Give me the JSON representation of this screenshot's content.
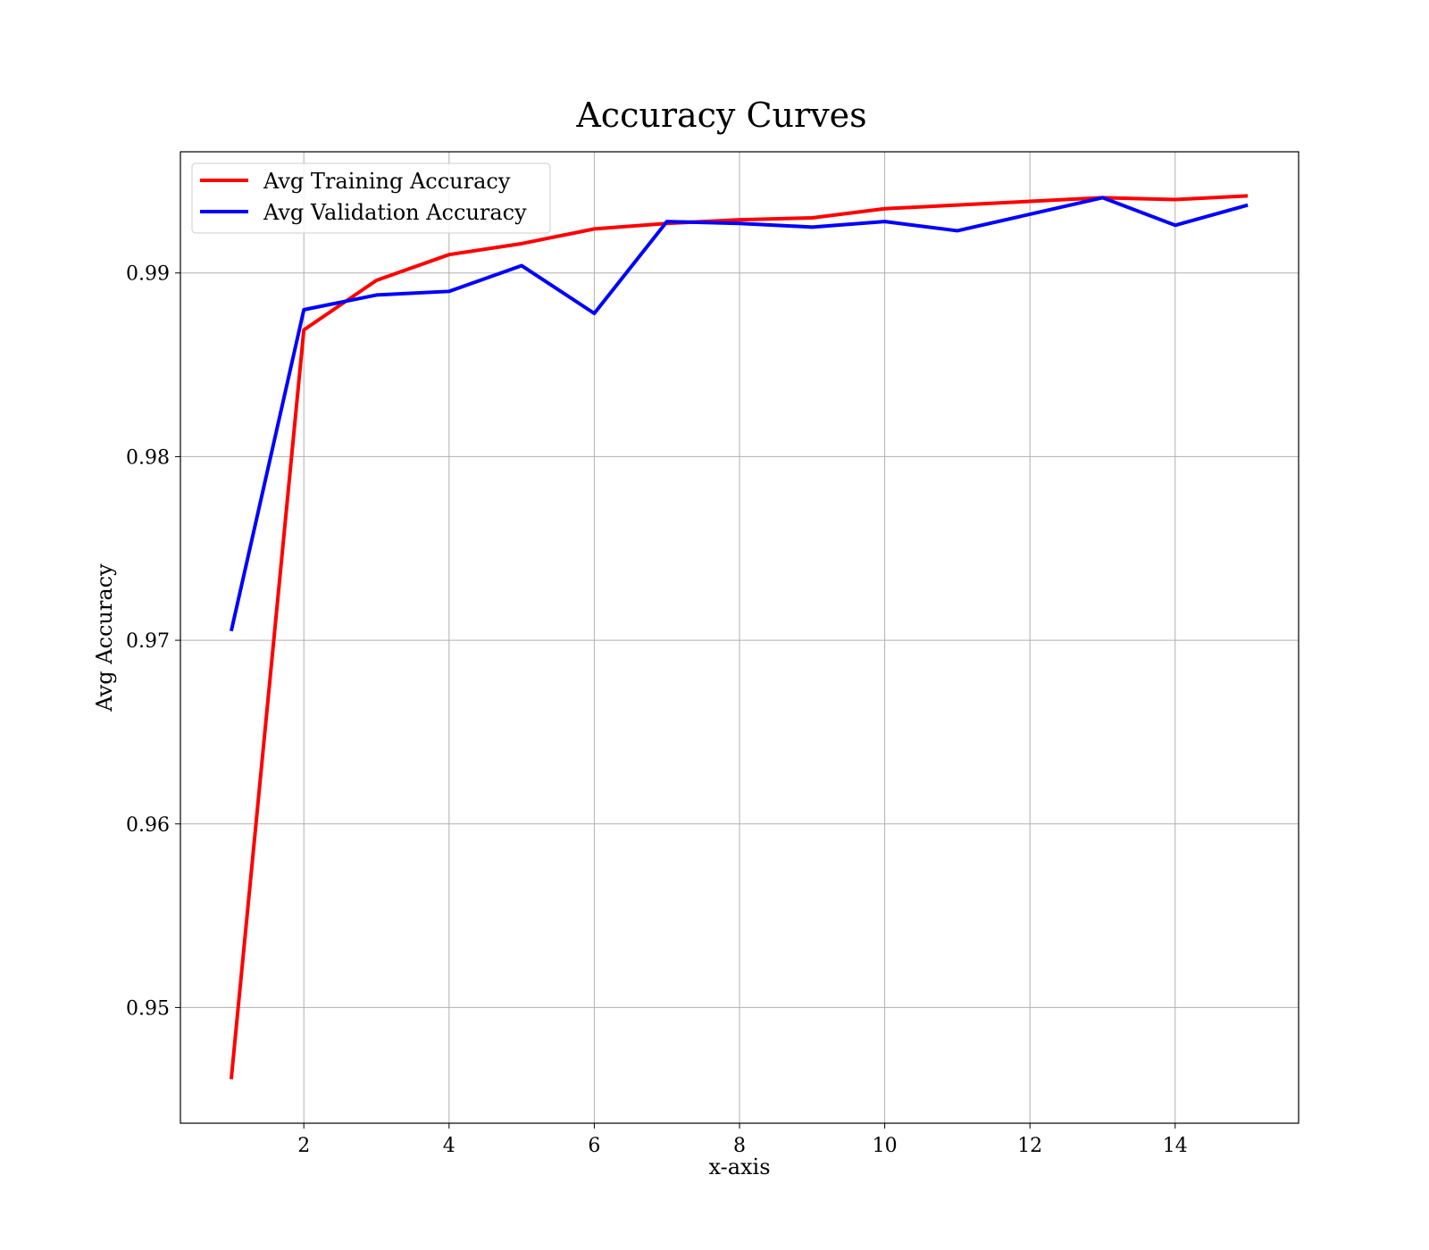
{
  "chart_data": {
    "type": "line",
    "title": "Accuracy Curves",
    "xlabel": "x-axis",
    "ylabel": "Avg Accuracy",
    "x": [
      1,
      2,
      3,
      4,
      5,
      6,
      7,
      8,
      9,
      10,
      11,
      12,
      13,
      14,
      15
    ],
    "xlim": [
      0.3,
      15.7
    ],
    "ylim": [
      0.9437,
      0.9966
    ],
    "xticks": [
      2,
      4,
      6,
      8,
      10,
      12,
      14
    ],
    "xtick_labels": [
      "2",
      "4",
      "6",
      "8",
      "10",
      "12",
      "14"
    ],
    "yticks": [
      0.95,
      0.96,
      0.97,
      0.98,
      0.99
    ],
    "ytick_labels": [
      "0.95",
      "0.96",
      "0.97",
      "0.98",
      "0.99"
    ],
    "grid": true,
    "legend_position": "top-left",
    "series": [
      {
        "name": "Avg Training Accuracy",
        "color": "#ff0000",
        "values": [
          0.9461,
          0.9869,
          0.9896,
          0.991,
          0.9916,
          0.9924,
          0.9927,
          0.9929,
          0.993,
          0.9935,
          0.9937,
          0.9939,
          0.9941,
          0.994,
          0.9942
        ]
      },
      {
        "name": "Avg Validation Accuracy",
        "color": "#0000ff",
        "values": [
          0.9705,
          0.988,
          0.9888,
          0.989,
          0.9904,
          0.9878,
          0.9928,
          0.9927,
          0.9925,
          0.9928,
          0.9923,
          0.9932,
          0.9941,
          0.9926,
          0.9937
        ]
      }
    ]
  }
}
